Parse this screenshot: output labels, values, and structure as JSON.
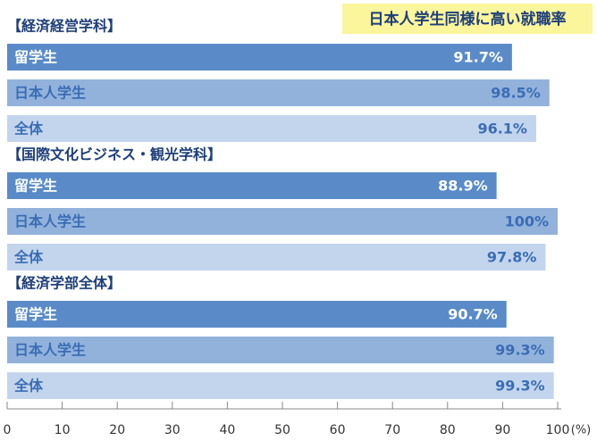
{
  "chart_data": {
    "type": "grouped-hbar",
    "title": "日本人学生同様に高い就職率",
    "groups": [
      {
        "name": "【経済経営学科】",
        "categories": [
          "留学生",
          "日本人学生",
          "全体"
        ],
        "values": [
          91.7,
          98.5,
          96.1
        ],
        "value_labels": [
          "91.7%",
          "98.5%",
          "96.1%"
        ]
      },
      {
        "name": "【国際文化ビジネス・観光学科】",
        "categories": [
          "留学生",
          "日本人学生",
          "全体"
        ],
        "values": [
          88.9,
          100,
          97.8
        ],
        "value_labels": [
          "88.9%",
          "100%",
          "97.8%"
        ]
      },
      {
        "name": "【経済学部全体】",
        "categories": [
          "留学生",
          "日本人学生",
          "全体"
        ],
        "values": [
          90.7,
          99.3,
          99.3
        ],
        "value_labels": [
          "90.7%",
          "99.3%",
          "99.3%"
        ]
      }
    ],
    "colors": [
      "#5a8bc8",
      "#92b2dc",
      "#c3d5ed"
    ],
    "xlim": [
      0,
      100
    ],
    "xticks": [
      0,
      10,
      20,
      30,
      40,
      50,
      60,
      70,
      80,
      90,
      100
    ],
    "xlabel": "(%)"
  }
}
